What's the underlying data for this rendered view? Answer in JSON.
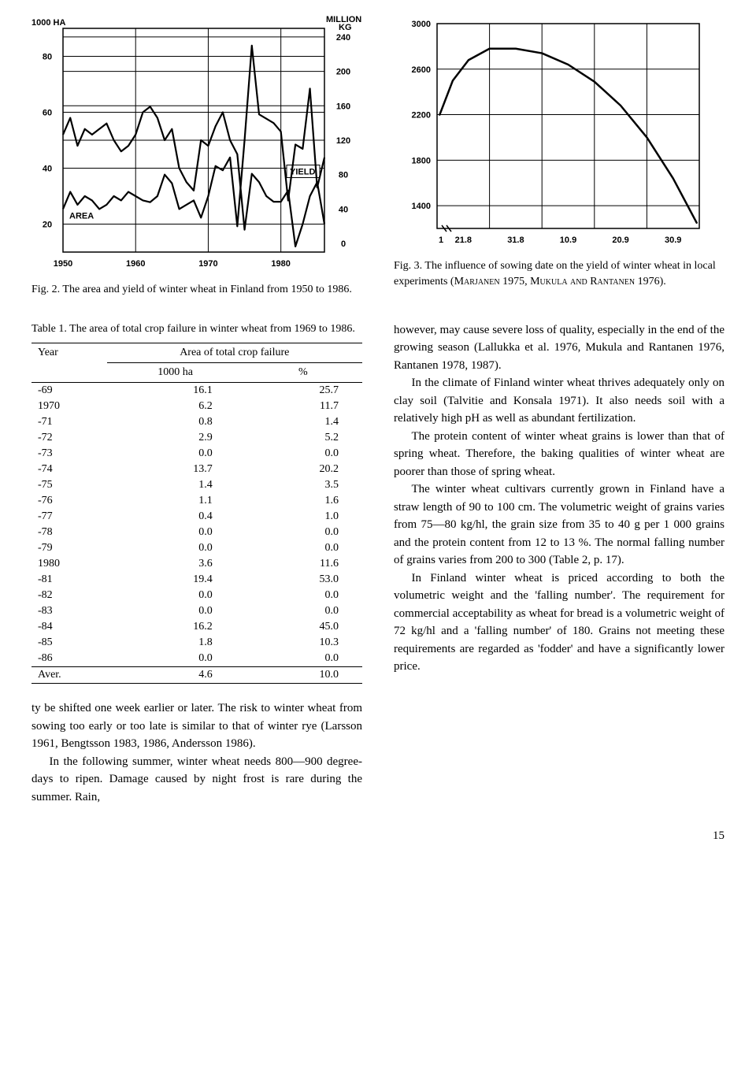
{
  "fig2": {
    "title_left": "1000 HA",
    "title_right_top": "MILLION",
    "title_right_bot": "KG",
    "area_label": "AREA",
    "yield_label": "YIELD",
    "x_ticks": [
      "1950",
      "1960",
      "1970",
      "1980"
    ],
    "left_y_ticks": [
      20,
      40,
      60,
      80
    ],
    "right_y_ticks_top": [
      240,
      200,
      160,
      120
    ],
    "right_y_ticks_bot": [
      80,
      40,
      0
    ],
    "left_xmin": 1950,
    "left_xmax": 1986,
    "left_ymin": 10,
    "left_ymax": 90,
    "right_ymin": -10,
    "right_ymax": 250,
    "area_series": {
      "x": [
        1950,
        1951,
        1952,
        1953,
        1954,
        1955,
        1956,
        1957,
        1958,
        1959,
        1960,
        1961,
        1962,
        1963,
        1964,
        1965,
        1966,
        1967,
        1968,
        1969,
        1970,
        1971,
        1972,
        1973,
        1974,
        1975,
        1976,
        1977,
        1978,
        1979,
        1980,
        1981,
        1982,
        1983,
        1984,
        1985,
        1986
      ],
      "y": [
        52,
        58,
        48,
        54,
        52,
        54,
        56,
        50,
        46,
        48,
        52,
        60,
        62,
        58,
        50,
        54,
        40,
        35,
        32,
        50,
        48,
        55,
        60,
        50,
        45,
        18,
        38,
        35,
        30,
        28,
        28,
        32,
        12,
        20,
        30,
        35,
        20
      ]
    },
    "yield_series": {
      "x": [
        1950,
        1951,
        1952,
        1953,
        1954,
        1955,
        1956,
        1957,
        1958,
        1959,
        1960,
        1961,
        1962,
        1963,
        1964,
        1965,
        1966,
        1967,
        1968,
        1969,
        1970,
        1971,
        1972,
        1973,
        1974,
        1975,
        1976,
        1977,
        1978,
        1979,
        1980,
        1981,
        1982,
        1983,
        1984,
        1985,
        1986
      ],
      "y": [
        40,
        60,
        45,
        55,
        50,
        40,
        45,
        55,
        50,
        60,
        55,
        50,
        48,
        55,
        80,
        70,
        40,
        45,
        50,
        30,
        55,
        90,
        85,
        100,
        20,
        120,
        230,
        150,
        145,
        140,
        130,
        50,
        115,
        110,
        180,
        65,
        100
      ]
    },
    "caption": "Fig. 2. The area and yield of winter wheat in Finland from 1950 to 1986."
  },
  "fig3": {
    "y_ticks": [
      1400,
      1800,
      2200,
      2600,
      3000
    ],
    "x_ticks": [
      "21.8",
      "31.8",
      "10.9",
      "20.9",
      "30.9"
    ],
    "xmin": 0,
    "xmax": 5,
    "ymin": 1200,
    "ymax": 3000,
    "curve": {
      "x": [
        0.05,
        0.3,
        0.6,
        1.0,
        1.5,
        2.0,
        2.5,
        3.0,
        3.5,
        4.0,
        4.5,
        4.95
      ],
      "y": [
        2200,
        2500,
        2680,
        2780,
        2780,
        2740,
        2640,
        2490,
        2280,
        2000,
        1640,
        1250
      ]
    },
    "caption_lead": "Fig. 3. The influence of sowing date on the yield of winter wheat in local experiments (",
    "caption_refs": "Marjanen 1975, Mukula and Rantanen 1976",
    "caption_tail": ")."
  },
  "table1": {
    "caption": "Table 1. The area of total crop failure in winter wheat from 1969 to 1986.",
    "head_year": "Year",
    "head_area": "Area of total crop failure",
    "head_ha": "1000 ha",
    "head_pct": "%",
    "rows": [
      {
        "y": "-69",
        "ha": "16.1",
        "pct": "25.7"
      },
      {
        "y": "1970",
        "ha": "6.2",
        "pct": "11.7"
      },
      {
        "y": "-71",
        "ha": "0.8",
        "pct": "1.4"
      },
      {
        "y": "-72",
        "ha": "2.9",
        "pct": "5.2"
      },
      {
        "y": "-73",
        "ha": "0.0",
        "pct": "0.0"
      },
      {
        "y": "-74",
        "ha": "13.7",
        "pct": "20.2"
      },
      {
        "y": "-75",
        "ha": "1.4",
        "pct": "3.5"
      },
      {
        "y": "-76",
        "ha": "1.1",
        "pct": "1.6"
      },
      {
        "y": "-77",
        "ha": "0.4",
        "pct": "1.0"
      },
      {
        "y": "-78",
        "ha": "0.0",
        "pct": "0.0"
      },
      {
        "y": "-79",
        "ha": "0.0",
        "pct": "0.0"
      },
      {
        "y": "1980",
        "ha": "3.6",
        "pct": "11.6"
      },
      {
        "y": "-81",
        "ha": "19.4",
        "pct": "53.0"
      },
      {
        "y": "-82",
        "ha": "0.0",
        "pct": "0.0"
      },
      {
        "y": "-83",
        "ha": "0.0",
        "pct": "0.0"
      },
      {
        "y": "-84",
        "ha": "16.2",
        "pct": "45.0"
      },
      {
        "y": "-85",
        "ha": "1.8",
        "pct": "10.3"
      },
      {
        "y": "-86",
        "ha": "0.0",
        "pct": "0.0"
      }
    ],
    "aver_label": "Aver.",
    "aver_ha": "4.6",
    "aver_pct": "10.0"
  },
  "body_left": {
    "p1": "ty be shifted one week earlier or later. The risk to winter wheat from sowing too early or too late is similar to that of winter rye (Larsson 1961, Bengtsson 1983, 1986, Andersson 1986).",
    "p2": "In the following summer, winter wheat needs 800—900 degree-days to ripen. Damage caused by night frost is rare during the summer. Rain,"
  },
  "body_right": {
    "p1": "however, may cause severe loss of quality, especially in the end of the growing season (Lallukka et al. 1976, Mukula and Rantanen 1976, Rantanen 1978, 1987).",
    "p2": "In the climate of Finland winter wheat thrives adequately only on clay soil (Talvitie and Konsala 1971). It also needs soil with a relatively high pH as well as abundant fertilization.",
    "p3": "The protein content of winter wheat grains is lower than that of spring wheat. Therefore, the baking qualities of winter wheat are poorer than those of spring wheat.",
    "p4": "The winter wheat cultivars currently grown in Finland have a straw length of 90 to 100 cm. The volumetric weight of grains varies from 75—80 kg/hl, the grain size from 35 to 40 g per 1 000 grains and the protein content from 12 to 13 %. The normal falling number of grains varies from 200 to 300 (Table 2, p. 17).",
    "p5": "In Finland winter wheat is priced according to both the volumetric weight and the 'falling number'. The requirement for commercial acceptability as wheat for bread is a volumetric weight of 72 kg/hl and a 'falling number' of 180. Grains not meeting these requirements are regarded as 'fodder' and have a significantly lower price."
  },
  "page_num": "15",
  "colors": {
    "line": "#000000",
    "bg": "#ffffff",
    "grid": "#000000"
  }
}
